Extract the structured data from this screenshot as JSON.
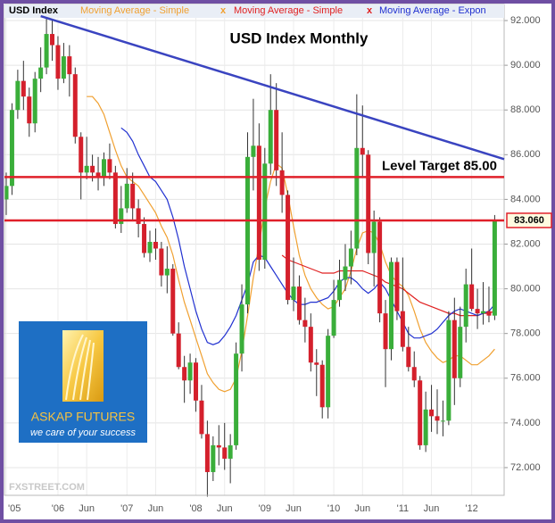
{
  "chart_data": {
    "type": "candlestick",
    "title": "USD Index Monthly",
    "categories": [
      "'05",
      null,
      null,
      null,
      null,
      null,
      null,
      null,
      null,
      "'06",
      null,
      null,
      null,
      null,
      "Jun",
      null,
      null,
      null,
      null,
      null,
      null,
      "'07",
      null,
      null,
      null,
      null,
      "Jun",
      null,
      null,
      null,
      null,
      null,
      null,
      "'08",
      null,
      null,
      null,
      null,
      "Jun",
      null,
      null,
      null,
      null,
      null,
      null,
      "'09",
      null,
      null,
      null,
      null,
      "Jun",
      null,
      null,
      null,
      null,
      null,
      null,
      "'10",
      null,
      null,
      null,
      null,
      "Jun",
      null,
      null,
      null,
      null,
      null,
      null,
      "'11",
      null,
      null,
      null,
      null,
      "Jun",
      null,
      null,
      null,
      null,
      null,
      null,
      "'12",
      null,
      null,
      null,
      null
    ],
    "series": [
      {
        "name": "USD Index",
        "color": "#000000",
        "up_color": "#3aae3a",
        "down_color": "#d4202c",
        "open": [
          84.0,
          84.6,
          88.0,
          89.3,
          88.6,
          87.4,
          89.4,
          89.9,
          91.4,
          90.9,
          89.4,
          90.4,
          89.6,
          86.8,
          85.2,
          85.5,
          85.2,
          85.0,
          85.8,
          85.2,
          82.9,
          83.6,
          84.7,
          83.6,
          82.9,
          81.6,
          82.1,
          81.8,
          80.6,
          80.9,
          78.0,
          76.5,
          75.9,
          76.7,
          75.0,
          73.5,
          71.8,
          73.0,
          72.9,
          72.4,
          73.0,
          77.1,
          79.3,
          85.9,
          86.4,
          81.3,
          85.6,
          88.0,
          85.3,
          84.2,
          79.5,
          80.1,
          78.6,
          78.3,
          76.7,
          76.6,
          74.7,
          77.9,
          79.5,
          80.4,
          81.0,
          81.8,
          86.3,
          86.0,
          81.6,
          83.0,
          78.9,
          77.3,
          81.2,
          79.0,
          77.4,
          76.5,
          75.9,
          73.0,
          74.6,
          74.3,
          74.1,
          74.1,
          78.6,
          76.0,
          78.3,
          80.2,
          79.1,
          78.9,
          79.0,
          78.8
        ],
        "high": [
          85.2,
          88.3,
          89.8,
          90.2,
          89.0,
          89.7,
          90.8,
          92.1,
          92.0,
          91.3,
          91.0,
          90.9,
          89.9,
          87.0,
          86.8,
          86.0,
          85.9,
          86.1,
          86.5,
          85.5,
          84.6,
          85.4,
          85.2,
          84.0,
          83.2,
          82.6,
          82.7,
          82.1,
          81.9,
          81.1,
          78.5,
          77.0,
          77.1,
          76.9,
          75.7,
          74.1,
          73.4,
          73.9,
          74.0,
          73.5,
          77.6,
          80.2,
          87.0,
          88.5,
          87.4,
          86.3,
          89.6,
          89.2,
          87.0,
          84.4,
          81.4,
          80.6,
          79.6,
          78.9,
          77.3,
          76.8,
          78.2,
          80.4,
          81.3,
          82.0,
          82.6,
          88.7,
          88.2,
          86.2,
          83.5,
          83.2,
          79.5,
          81.4,
          81.4,
          81.4,
          78.3,
          77.2,
          76.1,
          75.4,
          75.7,
          75.5,
          75.0,
          79.0,
          79.6,
          79.2,
          80.9,
          81.8,
          80.0,
          80.3,
          80.1,
          83.3
        ],
        "low": [
          83.3,
          84.2,
          87.6,
          88.0,
          86.8,
          87.0,
          88.8,
          89.6,
          90.2,
          88.9,
          89.2,
          88.6,
          86.5,
          84.0,
          84.9,
          84.8,
          84.4,
          84.6,
          84.9,
          82.7,
          82.5,
          83.4,
          83.1,
          82.3,
          81.4,
          81.2,
          81.3,
          80.1,
          79.8,
          77.9,
          76.4,
          74.9,
          75.3,
          74.5,
          73.3,
          70.7,
          71.4,
          72.1,
          71.9,
          71.3,
          72.8,
          76.3,
          78.9,
          84.4,
          80.8,
          80.9,
          85.1,
          84.6,
          83.4,
          79.3,
          79.0,
          78.4,
          77.6,
          76.3,
          75.2,
          74.2,
          74.2,
          77.8,
          79.2,
          79.9,
          80.2,
          81.5,
          85.0,
          81.1,
          80.1,
          78.5,
          75.6,
          76.8,
          78.6,
          77.2,
          76.3,
          75.6,
          72.8,
          72.7,
          73.6,
          73.5,
          73.4,
          73.9,
          74.8,
          75.6,
          77.6,
          79.0,
          78.2,
          78.4,
          78.5,
          78.6
        ],
        "close": [
          84.6,
          88.0,
          89.3,
          88.6,
          87.4,
          89.4,
          89.9,
          91.4,
          90.9,
          89.4,
          90.4,
          89.6,
          86.8,
          85.2,
          85.5,
          85.2,
          85.0,
          85.8,
          85.2,
          82.9,
          83.6,
          84.7,
          83.6,
          82.9,
          81.6,
          82.1,
          81.8,
          80.6,
          80.9,
          78.0,
          76.5,
          75.9,
          76.7,
          75.0,
          73.5,
          71.8,
          73.0,
          72.9,
          72.4,
          73.0,
          77.1,
          79.3,
          85.9,
          86.4,
          81.3,
          85.6,
          88.0,
          85.3,
          84.2,
          79.5,
          80.1,
          78.6,
          78.3,
          76.7,
          76.6,
          74.7,
          77.9,
          79.5,
          80.4,
          81.0,
          81.8,
          86.3,
          86.0,
          81.6,
          83.0,
          78.9,
          77.3,
          81.2,
          79.0,
          77.4,
          76.5,
          75.9,
          73.0,
          74.6,
          74.3,
          74.1,
          74.1,
          78.6,
          76.0,
          78.3,
          80.2,
          79.1,
          78.9,
          79.0,
          78.8,
          83.06
        ]
      },
      {
        "name": "Moving Average - Simple",
        "type": "line",
        "color": "#f0a030",
        "values": [
          null,
          null,
          null,
          null,
          null,
          null,
          null,
          null,
          null,
          null,
          null,
          null,
          null,
          null,
          88.6,
          88.6,
          88.3,
          87.8,
          87.0,
          86.2,
          85.5,
          85.0,
          84.8,
          84.6,
          84.2,
          83.8,
          83.4,
          82.8,
          82.3,
          81.5,
          80.4,
          79.4,
          78.6,
          77.8,
          77.0,
          76.2,
          75.8,
          75.5,
          75.4,
          75.5,
          76.0,
          77.2,
          78.8,
          80.5,
          82.0,
          83.6,
          84.8,
          85.6,
          85.4,
          84.2,
          82.8,
          81.5,
          80.6,
          80.0,
          79.6,
          79.3,
          79.1,
          79.2,
          79.6,
          80.0,
          80.8,
          81.8,
          82.5,
          82.6,
          82.5,
          82.0,
          81.2,
          80.6,
          80.3,
          80.1,
          79.7,
          79.0,
          78.2,
          77.6,
          77.2,
          76.9,
          76.7,
          76.8,
          77.0,
          77.0,
          76.8,
          76.6,
          76.6,
          76.8,
          77.0,
          77.3
        ]
      },
      {
        "name": "Moving Average - Simple",
        "type": "line",
        "color": "#e02020",
        "values": [
          null,
          null,
          null,
          null,
          null,
          null,
          null,
          null,
          null,
          null,
          null,
          null,
          null,
          null,
          null,
          null,
          null,
          null,
          null,
          null,
          null,
          null,
          null,
          null,
          null,
          null,
          null,
          null,
          null,
          null,
          null,
          null,
          null,
          null,
          null,
          null,
          null,
          null,
          null,
          null,
          null,
          null,
          null,
          null,
          null,
          null,
          null,
          null,
          81.5,
          81.3,
          81.2,
          81.1,
          81.0,
          80.9,
          80.8,
          80.7,
          80.7,
          80.7,
          80.8,
          80.8,
          80.8,
          80.8,
          80.8,
          80.7,
          80.6,
          80.5,
          80.3,
          80.2,
          80.1,
          80.0,
          79.8,
          79.6,
          79.4,
          79.3,
          79.2,
          79.1,
          79.0,
          78.9,
          78.9,
          78.8,
          78.8,
          78.8,
          78.8,
          78.9,
          78.9,
          79.0
        ]
      },
      {
        "name": "Moving Average - Expon",
        "type": "line",
        "color": "#2030d0",
        "values": [
          null,
          null,
          null,
          null,
          null,
          null,
          null,
          null,
          null,
          null,
          null,
          null,
          null,
          null,
          null,
          null,
          null,
          null,
          null,
          null,
          87.2,
          87.0,
          86.6,
          86.0,
          85.5,
          85.0,
          84.8,
          84.4,
          84.0,
          83.2,
          82.2,
          81.0,
          80.0,
          79.0,
          78.2,
          77.6,
          77.5,
          77.6,
          77.9,
          78.3,
          78.8,
          79.5,
          80.2,
          81.2,
          81.5,
          81.4,
          81.0,
          80.6,
          80.2,
          79.8,
          79.5,
          79.3,
          79.3,
          79.4,
          79.4,
          79.5,
          79.6,
          79.9,
          80.3,
          80.5,
          80.5,
          80.3,
          80.0,
          79.8,
          80.0,
          80.3,
          80.0,
          79.5,
          79.0,
          78.5,
          78.0,
          77.8,
          77.8,
          77.9,
          78.0,
          78.2,
          78.5,
          78.8,
          79.0,
          79.1,
          79.0,
          78.9,
          78.8,
          78.9,
          79.0,
          79.3
        ]
      }
    ],
    "legend_remove": "x",
    "levels": [
      {
        "value": 85,
        "label": "Level Target 85.00",
        "color": "#e0202a"
      },
      {
        "value": 83.06,
        "label": "83.060",
        "color": "#e0202a"
      }
    ],
    "trendline": {
      "color": "#3a44c0",
      "values": [
        92.2,
        85.8
      ]
    },
    "ylim": [
      70.76,
      92.72
    ],
    "yticks": [
      {
        "value": 72,
        "label": "72.000"
      },
      {
        "value": 74,
        "label": "74.000"
      },
      {
        "value": 76,
        "label": "76.000"
      },
      {
        "value": 78,
        "label": "78.000"
      },
      {
        "value": 80,
        "label": "80.000"
      },
      {
        "value": 82,
        "label": "82.000"
      },
      {
        "value": 84,
        "label": "84.000"
      },
      {
        "value": 86,
        "label": "86.000"
      },
      {
        "value": 88,
        "label": "88.000"
      },
      {
        "value": 90,
        "label": "90.000"
      },
      {
        "value": 92,
        "label": "92.000"
      }
    ],
    "grid": true,
    "watermark": "FXSTREET.COM",
    "logo": {
      "name": "ASKAP FUTURES",
      "tagline": "we care of your success"
    }
  }
}
